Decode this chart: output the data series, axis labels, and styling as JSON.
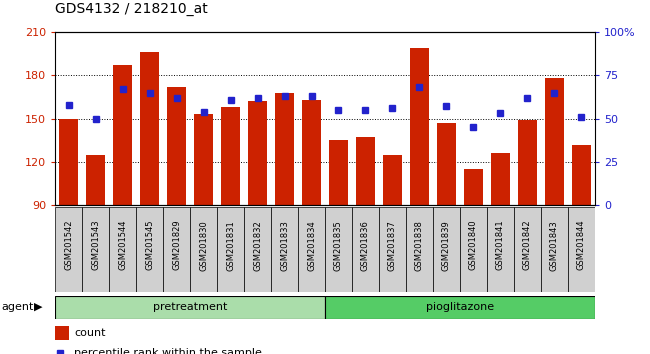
{
  "title": "GDS4132 / 218210_at",
  "samples": [
    "GSM201542",
    "GSM201543",
    "GSM201544",
    "GSM201545",
    "GSM201829",
    "GSM201830",
    "GSM201831",
    "GSM201832",
    "GSM201833",
    "GSM201834",
    "GSM201835",
    "GSM201836",
    "GSM201837",
    "GSM201838",
    "GSM201839",
    "GSM201840",
    "GSM201841",
    "GSM201842",
    "GSM201843",
    "GSM201844"
  ],
  "counts": [
    150,
    125,
    187,
    196,
    172,
    153,
    158,
    162,
    168,
    163,
    135,
    137,
    125,
    199,
    147,
    115,
    126,
    149,
    178,
    132
  ],
  "percentiles": [
    58,
    50,
    67,
    65,
    62,
    54,
    61,
    62,
    63,
    63,
    55,
    55,
    56,
    68,
    57,
    45,
    53,
    62,
    65,
    51
  ],
  "bar_color": "#cc2200",
  "dot_color": "#2222cc",
  "ymin": 90,
  "ymax": 210,
  "yticks": [
    90,
    120,
    150,
    180,
    210
  ],
  "y2min": 0,
  "y2max": 100,
  "y2ticks": [
    0,
    25,
    50,
    75,
    100
  ],
  "pretreatment_color": "#aaddaa",
  "pioglitazone_color": "#55cc66",
  "agent_label": "agent",
  "legend_count": "count",
  "legend_pct": "percentile rank within the sample",
  "split_index": 10
}
